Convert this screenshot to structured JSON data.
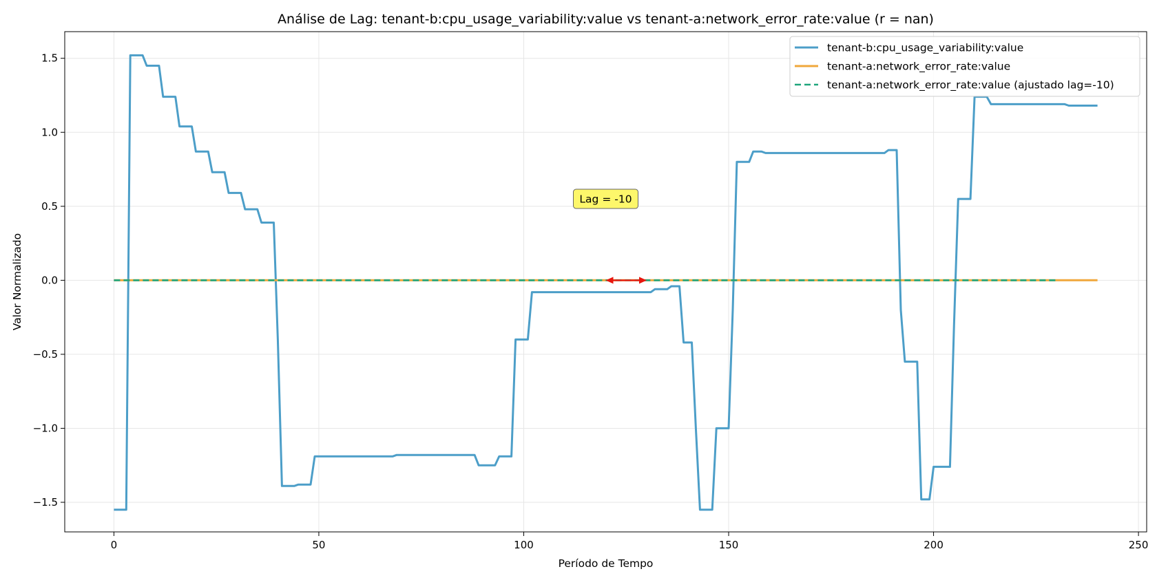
{
  "chart_data": {
    "type": "line",
    "title": "Análise de Lag: tenant-b:cpu_usage_variability:value vs tenant-a:network_error_rate:value (r = nan)",
    "xlabel": "Período de Tempo",
    "ylabel": "Valor Normalizado",
    "xlim": [
      -12,
      252
    ],
    "ylim": [
      -1.7,
      1.68
    ],
    "xticks": [
      0,
      50,
      100,
      150,
      200,
      250
    ],
    "yticks": [
      -1.5,
      -1.0,
      -0.5,
      0.0,
      0.5,
      1.0,
      1.5
    ],
    "xtick_labels": [
      "0",
      "50",
      "100",
      "150",
      "200",
      "250"
    ],
    "ytick_labels": [
      "−1.5",
      "−1.0",
      "−0.5",
      "0.0",
      "0.5",
      "1.0",
      "1.5"
    ],
    "grid": true,
    "legend_position": "top-right",
    "series": [
      {
        "name": "tenant-b:cpu_usage_variability:value",
        "color": "#4c9ec8",
        "style": "solid",
        "x": [
          0,
          3,
          4,
          7,
          8,
          11,
          12,
          15,
          16,
          19,
          20,
          23,
          24,
          27,
          28,
          31,
          32,
          35,
          36,
          39,
          40,
          41,
          44,
          45,
          48,
          49,
          52,
          53,
          68,
          69,
          72,
          73,
          84,
          85,
          88,
          89,
          93,
          94,
          97,
          98,
          101,
          102,
          131,
          132,
          135,
          136,
          138,
          139,
          141,
          142,
          143,
          146,
          147,
          150,
          151,
          152,
          155,
          156,
          158,
          159,
          188,
          189,
          191,
          192,
          193,
          196,
          197,
          199,
          200,
          201,
          204,
          205,
          206,
          209,
          210,
          211,
          213,
          214,
          232,
          233,
          240
        ],
        "y": [
          -1.55,
          -1.55,
          1.52,
          1.52,
          1.45,
          1.45,
          1.24,
          1.24,
          1.04,
          1.04,
          0.87,
          0.87,
          0.73,
          0.73,
          0.59,
          0.59,
          0.48,
          0.48,
          0.39,
          0.39,
          -0.4,
          -1.39,
          -1.39,
          -1.38,
          -1.38,
          -1.19,
          -1.19,
          -1.19,
          -1.19,
          -1.18,
          -1.18,
          -1.18,
          -1.18,
          -1.18,
          -1.18,
          -1.25,
          -1.25,
          -1.19,
          -1.19,
          -0.4,
          -0.4,
          -0.08,
          -0.08,
          -0.06,
          -0.06,
          -0.04,
          -0.04,
          -0.42,
          -0.42,
          -1.0,
          -1.55,
          -1.55,
          -1.0,
          -1.0,
          -0.2,
          0.8,
          0.8,
          0.87,
          0.87,
          0.86,
          0.86,
          0.88,
          0.88,
          -0.2,
          -0.55,
          -0.55,
          -1.48,
          -1.48,
          -1.26,
          -1.26,
          -1.26,
          -0.3,
          0.55,
          0.55,
          1.24,
          1.24,
          1.24,
          1.19,
          1.19,
          1.18,
          1.18
        ]
      },
      {
        "name": "tenant-a:network_error_rate:value",
        "color": "#f0a73b",
        "style": "solid",
        "x": [
          0,
          240
        ],
        "y": [
          0,
          0
        ]
      },
      {
        "name": "tenant-a:network_error_rate:value (ajustado lag=-10)",
        "color": "#1ea57b",
        "style": "dashed",
        "x": [
          0,
          230
        ],
        "y": [
          0,
          0
        ]
      }
    ],
    "annotations": [
      {
        "text": "Lag = -10",
        "x": 120,
        "y": 0.55
      },
      {
        "arrow_from": [
          120,
          0
        ],
        "arrow_to": [
          130,
          0
        ],
        "color": "#e8160e"
      }
    ]
  }
}
